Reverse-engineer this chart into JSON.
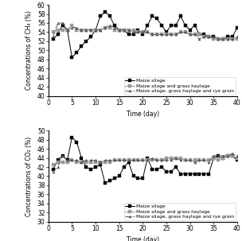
{
  "ch4_x": [
    1,
    2,
    3,
    4,
    5,
    6,
    7,
    8,
    9,
    10,
    11,
    12,
    13,
    14,
    15,
    16,
    17,
    18,
    19,
    20,
    21,
    22,
    23,
    24,
    25,
    26,
    27,
    28,
    29,
    30,
    31,
    32,
    33,
    34,
    35,
    36,
    37,
    38,
    39,
    40
  ],
  "ch4_maize": [
    52.5,
    53.5,
    55.5,
    54.5,
    48.5,
    49.5,
    51.0,
    52.0,
    53.0,
    54.5,
    57.5,
    58.5,
    57.5,
    55.5,
    54.5,
    54.5,
    53.5,
    53.5,
    54.5,
    53.5,
    55.5,
    57.5,
    57.0,
    55.5,
    54.0,
    55.5,
    55.5,
    57.5,
    55.5,
    54.5,
    55.5,
    53.5,
    53.5,
    53.0,
    53.0,
    52.5,
    52.5,
    53.0,
    53.0,
    55.0
  ],
  "ch4_grass": [
    54.0,
    54.5,
    54.5,
    54.5,
    55.5,
    54.5,
    54.5,
    54.5,
    54.5,
    54.5,
    54.5,
    55.0,
    55.0,
    54.5,
    54.5,
    54.5,
    54.5,
    54.5,
    54.0,
    54.0,
    54.0,
    53.5,
    53.5,
    53.5,
    53.5,
    53.5,
    53.5,
    54.0,
    54.0,
    53.5,
    53.5,
    53.5,
    53.0,
    53.0,
    52.5,
    52.5,
    52.5,
    52.5,
    52.5,
    52.5
  ],
  "ch4_rye": [
    53.0,
    56.0,
    56.0,
    54.5,
    55.0,
    55.0,
    54.5,
    54.5,
    54.5,
    54.5,
    54.5,
    55.0,
    55.5,
    55.0,
    54.5,
    54.5,
    54.5,
    54.0,
    54.0,
    54.0,
    54.0,
    53.5,
    53.5,
    53.5,
    53.5,
    53.5,
    53.5,
    54.0,
    54.0,
    53.5,
    53.5,
    52.5,
    53.0,
    53.0,
    53.0,
    52.5,
    52.5,
    52.5,
    52.5,
    53.0
  ],
  "co2_x": [
    1,
    2,
    3,
    4,
    5,
    6,
    7,
    8,
    9,
    10,
    11,
    12,
    13,
    14,
    15,
    16,
    17,
    18,
    19,
    20,
    21,
    22,
    23,
    24,
    25,
    26,
    27,
    28,
    29,
    30,
    31,
    32,
    33,
    34,
    35,
    36,
    37,
    38,
    39,
    40
  ],
  "co2_maize": [
    41.5,
    43.5,
    44.5,
    43.5,
    48.5,
    47.5,
    44.0,
    42.0,
    41.5,
    42.0,
    42.5,
    38.5,
    39.0,
    39.5,
    40.0,
    42.0,
    43.0,
    40.0,
    39.5,
    39.5,
    44.0,
    41.5,
    41.5,
    42.0,
    41.0,
    41.0,
    42.0,
    40.5,
    40.5,
    40.5,
    40.5,
    40.5,
    40.5,
    40.5,
    44.0,
    44.5,
    44.0,
    44.5,
    44.5,
    43.5
  ],
  "co2_grass": [
    42.5,
    43.0,
    43.0,
    43.0,
    43.5,
    43.0,
    43.0,
    43.0,
    43.0,
    43.0,
    43.0,
    43.0,
    43.0,
    43.5,
    43.5,
    43.5,
    43.5,
    43.5,
    43.5,
    43.5,
    43.5,
    43.5,
    43.5,
    43.5,
    44.0,
    44.0,
    44.0,
    44.0,
    43.5,
    43.5,
    43.5,
    43.5,
    43.5,
    43.5,
    44.0,
    43.5,
    44.0,
    44.5,
    44.5,
    44.0
  ],
  "co2_rye": [
    41.0,
    42.0,
    44.5,
    43.5,
    43.5,
    43.5,
    43.0,
    43.5,
    43.5,
    43.5,
    43.0,
    43.5,
    43.5,
    43.5,
    43.5,
    43.5,
    43.5,
    43.5,
    43.5,
    43.5,
    43.5,
    44.0,
    43.5,
    43.5,
    43.5,
    43.5,
    44.0,
    43.5,
    43.5,
    43.5,
    43.0,
    43.5,
    43.5,
    43.0,
    44.5,
    44.5,
    44.5,
    44.5,
    45.0,
    44.5
  ],
  "color_maize": "#000000",
  "color_grass": "#999999",
  "color_rye": "#555555",
  "ch4_ylabel": "Concentrations of CH₄ (%)",
  "co2_ylabel": "Concentrations of CO₂ (%)",
  "xlabel": "Time (day)",
  "ch4_ylim": [
    40,
    60
  ],
  "ch4_yticks": [
    40,
    42,
    44,
    46,
    48,
    50,
    52,
    54,
    56,
    58,
    60
  ],
  "co2_ylim": [
    30,
    50
  ],
  "co2_yticks": [
    30,
    32,
    34,
    36,
    38,
    40,
    42,
    44,
    46,
    48,
    50
  ],
  "xlim": [
    0,
    40
  ],
  "xticks": [
    0,
    5,
    10,
    15,
    20,
    25,
    30,
    35,
    40
  ],
  "legend_maize": "Maize silage",
  "legend_grass": "Maize silage and grass haylage",
  "legend_rye": "Maize silage, grass haylage and rye grain",
  "tick_fontsize": 5.5,
  "label_fontsize": 5.5,
  "legend_fontsize": 4.2,
  "linewidth": 0.7,
  "markersize": 2.2
}
